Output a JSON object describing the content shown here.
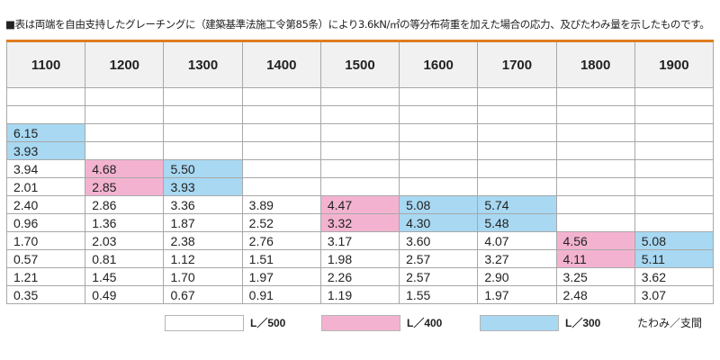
{
  "note": "■表は両端を自由支持したグレーチングに（建築基準法施工令第85条）により3.6kN/㎡の等分布荷重を加えた場合の応力、及びたわみ量を示したものです。",
  "columns": [
    "1100",
    "1200",
    "1300",
    "1400",
    "1500",
    "1600",
    "1700",
    "1800",
    "1900"
  ],
  "rows": [
    [
      "",
      "",
      "",
      "",
      "",
      "",
      "",
      "",
      ""
    ],
    [
      "",
      "",
      "",
      "",
      "",
      "",
      "",
      "",
      ""
    ],
    [
      "6.15",
      "",
      "",
      "",
      "",
      "",
      "",
      "",
      ""
    ],
    [
      "3.93",
      "",
      "",
      "",
      "",
      "",
      "",
      "",
      ""
    ],
    [
      "3.94",
      "4.68",
      "5.50",
      "",
      "",
      "",
      "",
      "",
      ""
    ],
    [
      "2.01",
      "2.85",
      "3.93",
      "",
      "",
      "",
      "",
      "",
      ""
    ],
    [
      "2.40",
      "2.86",
      "3.36",
      "3.89",
      "4.47",
      "5.08",
      "5.74",
      "",
      ""
    ],
    [
      "0.96",
      "1.36",
      "1.87",
      "2.52",
      "3.32",
      "4.30",
      "5.48",
      "",
      ""
    ],
    [
      "1.70",
      "2.03",
      "2.38",
      "2.76",
      "3.17",
      "3.60",
      "4.07",
      "4.56",
      "5.08"
    ],
    [
      "0.57",
      "0.81",
      "1.12",
      "1.51",
      "1.98",
      "2.57",
      "3.27",
      "4.11",
      "5.11"
    ],
    [
      "1.21",
      "1.45",
      "1.70",
      "1.97",
      "2.26",
      "2.57",
      "2.90",
      "3.25",
      "3.62"
    ],
    [
      "0.35",
      "0.49",
      "0.67",
      "0.91",
      "1.19",
      "1.55",
      "1.97",
      "2.48",
      "3.07"
    ]
  ],
  "cell_colors": [
    [
      "",
      "",
      "",
      "",
      "",
      "",
      "",
      "",
      ""
    ],
    [
      "",
      "",
      "",
      "",
      "",
      "",
      "",
      "",
      ""
    ],
    [
      "blue",
      "",
      "",
      "",
      "",
      "",
      "",
      "",
      ""
    ],
    [
      "blue",
      "",
      "",
      "",
      "",
      "",
      "",
      "",
      ""
    ],
    [
      "",
      "pink",
      "blue",
      "",
      "",
      "",
      "",
      "",
      ""
    ],
    [
      "",
      "pink",
      "blue",
      "",
      "",
      "",
      "",
      "",
      ""
    ],
    [
      "",
      "",
      "",
      "",
      "pink",
      "blue",
      "blue",
      "",
      ""
    ],
    [
      "",
      "",
      "",
      "",
      "pink",
      "blue",
      "blue",
      "",
      ""
    ],
    [
      "",
      "",
      "",
      "",
      "",
      "",
      "",
      "pink",
      "blue"
    ],
    [
      "",
      "",
      "",
      "",
      "",
      "",
      "",
      "pink",
      "blue"
    ],
    [
      "",
      "",
      "",
      "",
      "",
      "",
      "",
      "",
      ""
    ],
    [
      "",
      "",
      "",
      "",
      "",
      "",
      "",
      "",
      ""
    ]
  ],
  "legend": {
    "items": [
      {
        "label": "L／500",
        "color": "#ffffff"
      },
      {
        "label": "L／400",
        "color": "#f3b3d0"
      },
      {
        "label": "L／300",
        "color": "#a8d8f2"
      }
    ],
    "note": "たわみ／支間"
  },
  "colors": {
    "header_rule": "#e07b1f",
    "header_bg": "#f1f1f1",
    "blue": "#a8d8f2",
    "pink": "#f3b3d0",
    "grid": "#a8a8a8"
  }
}
